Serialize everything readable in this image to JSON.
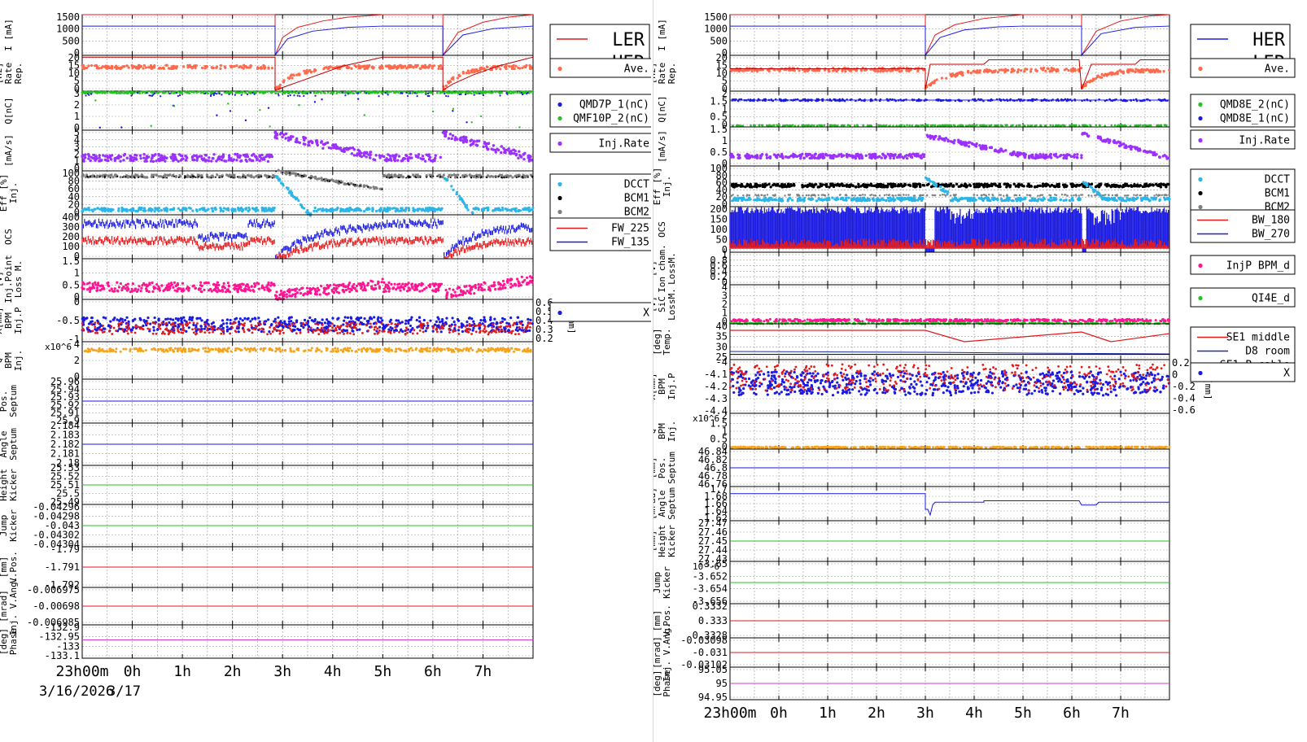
{
  "colors": {
    "red": "#e31a1c",
    "blue": "#1a1ae0",
    "salmon": "#ff6a4d",
    "green": "#22c322",
    "purple": "#9b30ff",
    "gray": "#7f7f7f",
    "black": "#000000",
    "cyan": "#2bb5e8",
    "pink": "#ff1493",
    "orange": "#f7a21b",
    "magenta": "#d23bd2",
    "navy": "#1c2fa0",
    "grid": "#9a9a9a"
  },
  "left": {
    "x_ticks": [
      "23h00m",
      "0h",
      "1h",
      "2h",
      "3h",
      "4h",
      "5h",
      "6h",
      "7h"
    ],
    "date_label": "3/16/2026",
    "date_label2": "3/17",
    "panels": [
      {
        "id": "L0",
        "ylabel": [
          "I [mA]"
        ],
        "ticks": [
          "1500",
          "1000",
          "500",
          "0"
        ],
        "ylim": [
          0,
          1600
        ],
        "legend": {
          "size": "big",
          "entries": [
            {
              "label": "LER",
              "color": "red",
              "kind": "line"
            },
            {
              "label": "HER",
              "color": "blue",
              "kind": "line"
            }
          ]
        }
      },
      {
        "id": "L1",
        "ylabel": [
          "Rep.",
          "Rate",
          "[Hz]"
        ],
        "ticks": [
          "20",
          "15",
          "10",
          "5",
          "0"
        ],
        "ylim": [
          0,
          20
        ],
        "legend": {
          "entries": [
            {
              "label": "Ave.",
              "color": "salmon",
              "kind": "dot"
            }
          ]
        }
      },
      {
        "id": "L2",
        "ylabel": [
          "Q[nC]"
        ],
        "ticks": [
          "3",
          "2",
          "1",
          "0"
        ],
        "ylim": [
          0,
          3
        ],
        "legend": {
          "entries": [
            {
              "label": "QMD7P_1(nC)",
              "color": "blue",
              "kind": "dot"
            },
            {
              "label": "QMF10P_2(nC)",
              "color": "green",
              "kind": "dot"
            }
          ]
        }
      },
      {
        "id": "L3",
        "ylabel": [
          "[mA/s]"
        ],
        "ticks": [
          "5",
          "4",
          "3",
          "2",
          "1",
          "0"
        ],
        "ylim": [
          0,
          5
        ],
        "legend": {
          "entries": [
            {
              "label": "Inj.Rate",
              "color": "purple",
              "kind": "dot"
            }
          ]
        }
      },
      {
        "id": "L4",
        "ylabel": [
          "Inj.",
          "Eff [%]"
        ],
        "ticks": [
          "100",
          "80",
          "60",
          "40",
          "20",
          "0"
        ],
        "ylim": [
          0,
          100
        ],
        "legend": {
          "entries": [
            {
              "label": "DCCT",
              "color": "cyan",
              "kind": "dot"
            },
            {
              "label": "BCM1",
              "color": "black",
              "kind": "dot"
            },
            {
              "label": "BCM2",
              "color": "gray",
              "kind": "dot"
            }
          ]
        }
      },
      {
        "id": "L5",
        "ylabel": [
          "OCS"
        ],
        "ticks": [
          "400",
          "300",
          "200",
          "100",
          "0"
        ],
        "ylim": [
          0,
          400
        ],
        "legend": {
          "entries": [
            {
              "label": "FW_225",
              "color": "red",
              "kind": "line"
            },
            {
              "label": "FW_135",
              "color": "blue",
              "kind": "line"
            }
          ]
        }
      },
      {
        "id": "L6",
        "ylabel": [
          "Loss M.",
          "Inj.Point",
          "[V]"
        ],
        "ticks": [
          "1.5",
          "1",
          "0.5",
          "0"
        ],
        "ylim": [
          0,
          1.5
        ],
        "legend": {
          "entries": []
        }
      },
      {
        "id": "L7",
        "ylabel": [
          "Inj.P",
          "BPM",
          "X[mm]"
        ],
        "ticks": [
          "0",
          "-0.5",
          "-1"
        ],
        "ylim": [
          -1,
          0.6
        ],
        "right_ticks": [
          "0.6",
          "0.5",
          "0.4",
          "0.3",
          "0.2"
        ],
        "right_label": "Y[mm]",
        "legend": {
          "entries": [
            {
              "label": "X",
              "color": "blue",
              "kind": "dot"
            }
          ]
        }
      },
      {
        "id": "L8",
        "ylabel": [
          "Inj.",
          "BPM",
          "Q"
        ],
        "ticks": [
          "4",
          "2",
          "0"
        ],
        "ylim": [
          0,
          5
        ],
        "exponent": "x10^6",
        "legend": {
          "entries": []
        }
      },
      {
        "id": "L9",
        "ylabel": [
          "Septum",
          "Pos."
        ],
        "ticks": [
          "25.96",
          "25.94",
          "25.93",
          "25.92",
          "25.91",
          "25.9"
        ],
        "ylim": [
          0,
          1
        ],
        "legend": {
          "entries": []
        }
      },
      {
        "id": "L10",
        "ylabel": [
          "Septum",
          "Angle"
        ],
        "ticks": [
          "2.184",
          "2.183",
          "2.182",
          "2.181",
          "2.18"
        ],
        "ylim": [
          0,
          1
        ],
        "legend": {
          "entries": []
        }
      },
      {
        "id": "L11",
        "ylabel": [
          "Kicker",
          "Height"
        ],
        "ticks": [
          "25.53",
          "25.52",
          "25.51",
          "25.5",
          "25.49"
        ],
        "ylim": [
          0,
          1
        ],
        "legend": {
          "entries": []
        }
      },
      {
        "id": "L12",
        "ylabel": [
          "Kicker",
          "Jump"
        ],
        "ticks": [
          "-0.04296",
          "-0.04298",
          "-0.043",
          "-0.04302",
          "-0.04304"
        ],
        "ylim": [
          0,
          1
        ],
        "legend": {
          "entries": []
        }
      },
      {
        "id": "L13",
        "ylabel": [
          "V.Pos.",
          "[mm]"
        ],
        "ticks": [
          "-1.79",
          "-1.791",
          "-1.792"
        ],
        "ylim": [
          0,
          1
        ],
        "legend": {
          "entries": []
        }
      },
      {
        "id": "L14",
        "ylabel": [
          "Inj. V.Ang.",
          "[mrad]"
        ],
        "ticks": [
          "-0.006975",
          "-0.00698",
          "-0.006985"
        ],
        "ylim": [
          0,
          1
        ],
        "legend": {
          "entries": []
        }
      },
      {
        "id": "L15",
        "ylabel": [
          "Phase",
          "[deg]"
        ],
        "ticks": [
          "-132.9",
          "-132.95",
          "-133",
          "-133.1"
        ],
        "ylim": [
          0,
          1
        ],
        "legend": {
          "entries": []
        }
      }
    ]
  },
  "right": {
    "x_ticks": [
      "23h00m",
      "0h",
      "1h",
      "2h",
      "3h",
      "4h",
      "5h",
      "6h",
      "7h"
    ],
    "panels": [
      {
        "id": "R0",
        "ylabel": [
          "I [mA]"
        ],
        "ticks": [
          "1500",
          "1000",
          "500",
          "0"
        ],
        "ylim": [
          0,
          1600
        ],
        "legend": {
          "size": "big",
          "entries": [
            {
              "label": "HER",
              "color": "blue",
              "kind": "line"
            },
            {
              "label": "LER",
              "color": "red",
              "kind": "line"
            }
          ]
        }
      },
      {
        "id": "R1",
        "ylabel": [
          "Rep.",
          "Rate",
          "[Hz]"
        ],
        "ticks": [
          "20",
          "15",
          "10",
          "5",
          "0"
        ],
        "ylim": [
          0,
          20
        ],
        "legend": {
          "entries": [
            {
              "label": "Ave.",
              "color": "salmon",
              "kind": "dot"
            }
          ]
        }
      },
      {
        "id": "R2",
        "ylabel": [
          "Q[nC]"
        ],
        "ticks": [
          "2",
          "1.5",
          "1",
          "0.5",
          "0"
        ],
        "ylim": [
          0,
          2
        ],
        "legend": {
          "entries": [
            {
              "label": "QMD8E_2(nC)",
              "color": "green",
              "kind": "dot"
            },
            {
              "label": "QMD8E_1(nC)",
              "color": "blue",
              "kind": "dot"
            }
          ]
        }
      },
      {
        "id": "R3",
        "ylabel": [
          "[mA/s]"
        ],
        "ticks": [
          "1.5",
          "1",
          "0.5",
          "0"
        ],
        "ylim": [
          0,
          1.8
        ],
        "legend": {
          "entries": [
            {
              "label": "Inj.Rate",
              "color": "purple",
              "kind": "dot"
            }
          ]
        }
      },
      {
        "id": "R4",
        "ylabel": [
          "Inj.",
          "Eff [%]"
        ],
        "ticks": [
          "100",
          "80",
          "60",
          "40",
          "20",
          "0"
        ],
        "ylim": [
          0,
          100
        ],
        "legend": {
          "entries": [
            {
              "label": "DCCT",
              "color": "cyan",
              "kind": "dot"
            },
            {
              "label": "BCM1",
              "color": "black",
              "kind": "dot"
            },
            {
              "label": "BCM2",
              "color": "gray",
              "kind": "dot"
            }
          ]
        }
      },
      {
        "id": "R5",
        "ylabel": [
          "OCS"
        ],
        "ticks": [
          "200",
          "150",
          "100",
          "50",
          "0"
        ],
        "ylim": [
          0,
          200
        ],
        "legend": {
          "entries": [
            {
              "label": "BW_180",
              "color": "red",
              "kind": "line"
            },
            {
              "label": "BW_270",
              "color": "blue",
              "kind": "line"
            }
          ]
        }
      },
      {
        "id": "R6",
        "ylabel": [
          "LossM.",
          "Ion cham.",
          "[V]"
        ],
        "ticks": [
          "1",
          "0.8",
          "0.6",
          "0.4",
          "0.2",
          "0"
        ],
        "ylim": [
          0,
          1
        ],
        "legend": {
          "entries": [
            {
              "label": "InjP BPM_d",
              "color": "pink",
              "kind": "dot"
            }
          ]
        }
      },
      {
        "id": "R7",
        "ylabel": [
          "LossM.",
          "SiC",
          "[V]"
        ],
        "ticks": [
          "4",
          "3",
          "2",
          "1",
          "0"
        ],
        "ylim": [
          0,
          4
        ],
        "legend": {
          "entries": [
            {
              "label": "QI4E_d",
              "color": "green",
              "kind": "dot"
            }
          ]
        }
      },
      {
        "id": "R8",
        "ylabel": [
          "Temp.",
          "[deg]"
        ],
        "ticks": [
          "40",
          "35",
          "30",
          "25"
        ],
        "ylim": [
          22,
          44
        ],
        "legend": {
          "entries": [
            {
              "label": "SE1 middle",
              "color": "red",
              "kind": "line"
            },
            {
              "label": "D8 room",
              "color": "navy",
              "kind": "line"
            },
            {
              "label": "SE1 P.cable",
              "color": "black",
              "kind": "line"
            }
          ]
        }
      },
      {
        "id": "R9",
        "ylabel": [
          "Inj.P",
          "BPM",
          "X[mm]"
        ],
        "ticks": [
          "-4",
          "-4.1",
          "-4.2",
          "-4.3",
          "-4.4"
        ],
        "ylim": [
          -4.45,
          -4
        ],
        "right_ticks": [
          "0.2",
          "0",
          "-0.2",
          "-0.4",
          "-0.6"
        ],
        "right_label": "Y[mm]",
        "legend": {
          "entries": [
            {
              "label": "X",
              "color": "blue",
              "kind": "dot"
            }
          ]
        }
      },
      {
        "id": "R10",
        "ylabel": [
          "Inj.",
          "BPM",
          "Q"
        ],
        "ticks": [
          "2",
          "1.5",
          "1",
          "0.5",
          "0"
        ],
        "ylim": [
          0,
          2
        ],
        "exponent": "x10^6",
        "legend": {
          "entries": []
        }
      },
      {
        "id": "R11",
        "ylabel": [
          "Septum",
          "Pos.",
          "[mm]"
        ],
        "ticks": [
          "46.84",
          "46.82",
          "46.8",
          "46.78",
          "46.76"
        ],
        "ylim": [
          0,
          1
        ],
        "legend": {
          "entries": []
        }
      },
      {
        "id": "R12",
        "ylabel": [
          "Septum",
          "Angle",
          "[mrad]"
        ],
        "ticks": [
          "1.7",
          "1.68",
          "1.66",
          "1.64",
          "1.62"
        ],
        "ylim": [
          1.6,
          1.72
        ],
        "legend": {
          "entries": []
        }
      },
      {
        "id": "R13",
        "ylabel": [
          "Kicker",
          "Height",
          "[mm]"
        ],
        "ticks": [
          "27.47",
          "27.46",
          "27.45",
          "27.44",
          "27.43"
        ],
        "ylim": [
          0,
          1
        ],
        "legend": {
          "entries": []
        }
      },
      {
        "id": "R14",
        "ylabel": [
          "Kicker",
          "Jump"
        ],
        "ticks": [
          "-3.65",
          "-3.652",
          "-3.654",
          "-3.656"
        ],
        "ylim": [
          0,
          1
        ],
        "exponent": "10^-6",
        "legend": {
          "entries": []
        }
      },
      {
        "id": "R15",
        "ylabel": [
          "V.Pos.",
          "[mm]"
        ],
        "ticks": [
          "0.3332",
          "0.333",
          "0.3328"
        ],
        "ylim": [
          0,
          1
        ],
        "legend": {
          "entries": []
        }
      },
      {
        "id": "R16",
        "ylabel": [
          "Inj. V.Ang.",
          "[mrad]"
        ],
        "ticks": [
          "-0.03098",
          "-0.031",
          "-0.03102"
        ],
        "ylim": [
          0,
          1
        ],
        "legend": {
          "entries": []
        }
      },
      {
        "id": "R17",
        "ylabel": [
          "Phase",
          "[deg]"
        ],
        "ticks": [
          "95.05",
          "95",
          "94.95"
        ],
        "ylim": [
          0,
          1
        ],
        "legend": {
          "entries": []
        }
      }
    ]
  },
  "chart_data": [
    {
      "type": "line",
      "x_unit": "hours from 23:00 3/16",
      "x_range": [
        0,
        9
      ],
      "series": [
        {
          "name": "LER",
          "x": [
            0,
            3.85,
            3.9,
            4.2,
            4.6,
            5.0,
            5.5,
            6.0,
            7.2,
            7.25,
            7.6,
            8.0,
            8.5,
            9.0
          ],
          "values": [
            1600,
            1600,
            0,
            800,
            1200,
            1400,
            1500,
            1600,
            1600,
            0,
            900,
            1300,
            1500,
            1600
          ]
        },
        {
          "name": "HER",
          "x": [
            0,
            3.85,
            3.9,
            4.3,
            5.0,
            6.0,
            7.2,
            7.25,
            8.0,
            9.0
          ],
          "values": [
            1150,
            1150,
            0,
            800,
            1000,
            1150,
            1150,
            0,
            900,
            1150
          ]
        }
      ]
    },
    {
      "type": "line",
      "x_unit": "hours from 23:00 3/16",
      "x_range": [
        0,
        9
      ],
      "series": [
        {
          "name": "HER",
          "x": [
            0,
            4.0,
            4.05,
            4.5,
            5.0,
            6.0,
            7.2,
            7.25,
            8.0,
            9.0
          ],
          "values": [
            1150,
            1150,
            0,
            850,
            1050,
            1150,
            1150,
            0,
            950,
            1150
          ]
        },
        {
          "name": "LER",
          "x": [
            0,
            4.0,
            4.05,
            4.4,
            4.8,
            5.5,
            6.5,
            7.2,
            7.25,
            7.8,
            8.4,
            9.0
          ],
          "values": [
            1600,
            1600,
            0,
            900,
            1250,
            1450,
            1600,
            1600,
            0,
            1000,
            1400,
            1600
          ]
        }
      ]
    }
  ]
}
